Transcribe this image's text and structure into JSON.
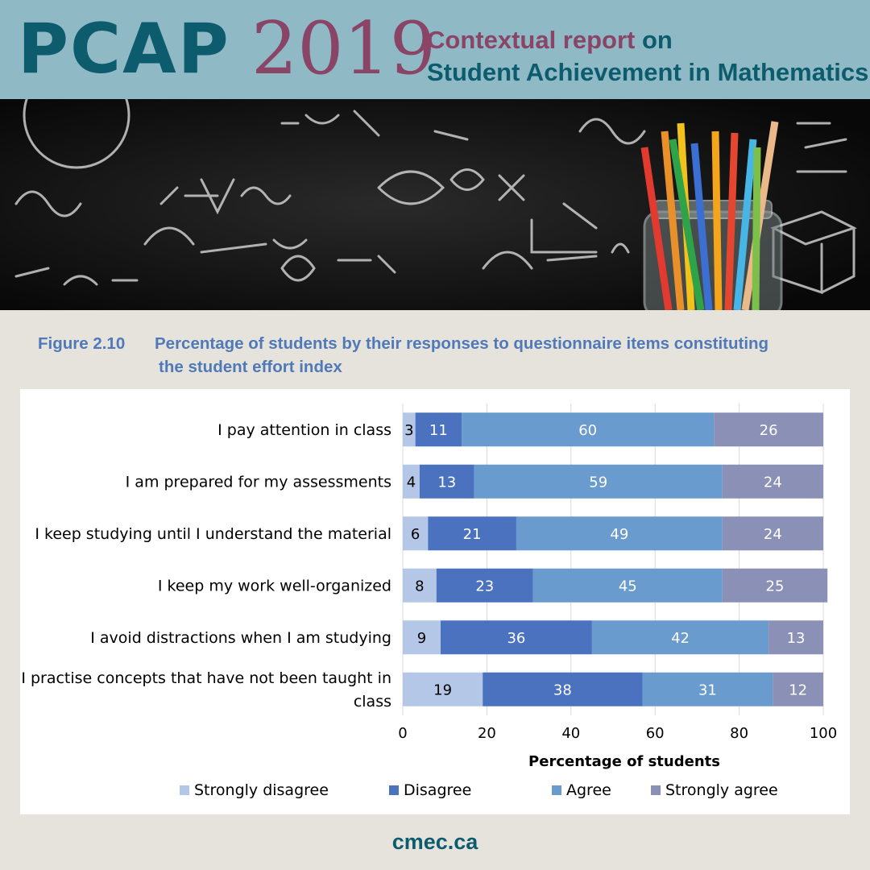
{
  "banner": {
    "brand": "PCAP",
    "year": "2019",
    "subtitle_part1": "Contextual report",
    "subtitle_on": "on",
    "subtitle_line2": "Student Achievement in Mathematics"
  },
  "figure": {
    "number": "Figure 2.10",
    "title_line1": "Percentage of students by their responses to questionnaire items constituting",
    "title_line2": "the student effort index"
  },
  "footer": {
    "site": "cmec.ca"
  },
  "colors": {
    "strongly_disagree": "#b4c7e7",
    "disagree": "#4a72bf",
    "agree": "#6a9bce",
    "strongly_agree": "#8a90b6",
    "brand_teal": "#0c5c6e",
    "brand_plum": "#8a4466",
    "title_blue": "#4f79b8"
  },
  "chart_data": {
    "type": "bar",
    "orientation": "horizontal",
    "stacked": true,
    "categories": [
      "I pay attention in class",
      "I am prepared for my assessments",
      "I keep studying until I understand the material",
      "I keep my work well-organized",
      "I avoid distractions when I am studying",
      "I practise concepts that have not been taught in class"
    ],
    "series": [
      {
        "name": "Strongly disagree",
        "values": [
          3,
          4,
          6,
          8,
          9,
          19
        ]
      },
      {
        "name": "Disagree",
        "values": [
          11,
          13,
          21,
          23,
          36,
          38
        ]
      },
      {
        "name": "Agree",
        "values": [
          60,
          59,
          49,
          45,
          42,
          31
        ]
      },
      {
        "name": "Strongly agree",
        "values": [
          26,
          24,
          24,
          25,
          13,
          12
        ]
      }
    ],
    "xlabel": "Percentage of students",
    "ylabel": "",
    "xlim": [
      0,
      100
    ],
    "xticks": [
      "0",
      "20",
      "40",
      "60",
      "80",
      "100"
    ],
    "grid": true,
    "legend": "bottom"
  }
}
